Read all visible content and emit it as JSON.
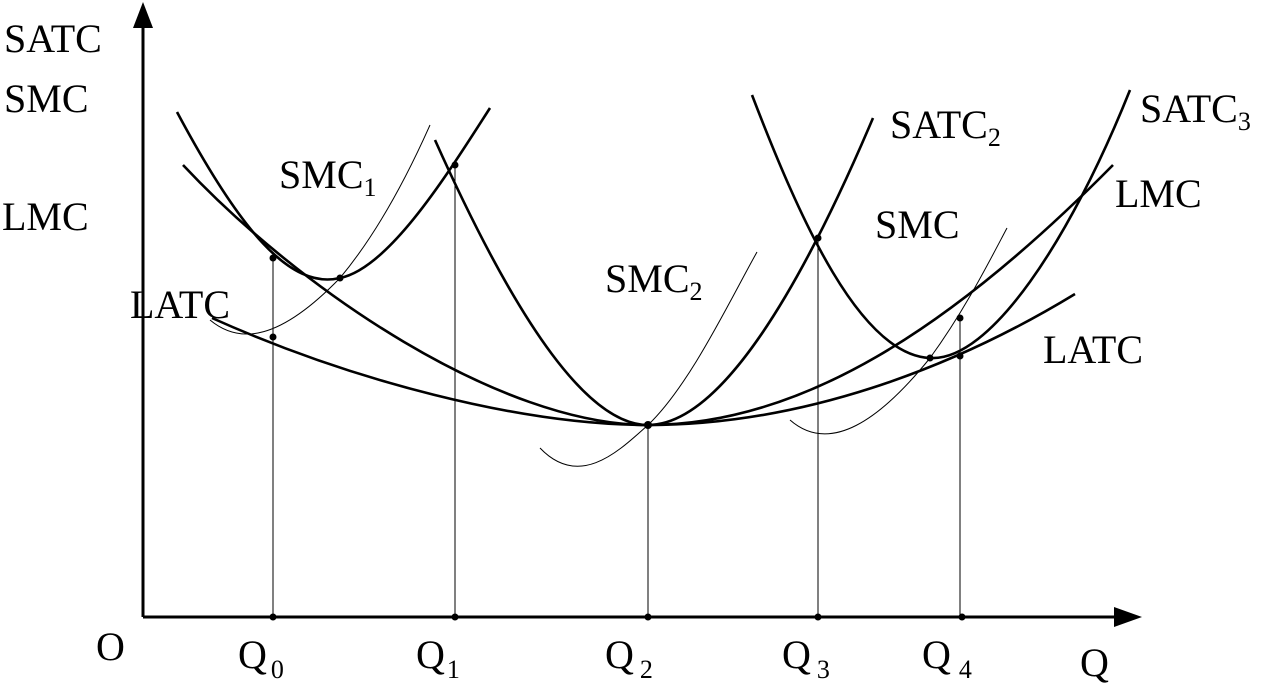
{
  "axes": {
    "y_labels": [
      "SATC",
      "SMC",
      "LMC"
    ],
    "origin": "O",
    "x_label": "Q"
  },
  "x_ticks": [
    {
      "main": "Q",
      "sub": "0"
    },
    {
      "main": "Q",
      "sub": "1"
    },
    {
      "main": "Q",
      "sub": "2"
    },
    {
      "main": "Q",
      "sub": "3"
    },
    {
      "main": "Q",
      "sub": "4"
    }
  ],
  "curve_labels": [
    {
      "main": "SMC",
      "sub": "1"
    },
    {
      "main": "SATC",
      "sub": "2"
    },
    {
      "main": "SATC",
      "sub": "3"
    },
    {
      "main": "LMC"
    },
    {
      "main": "SMC"
    },
    {
      "main": "SMC",
      "sub": "2"
    },
    {
      "main": "LATC"
    },
    {
      "main": "LATC"
    }
  ]
}
